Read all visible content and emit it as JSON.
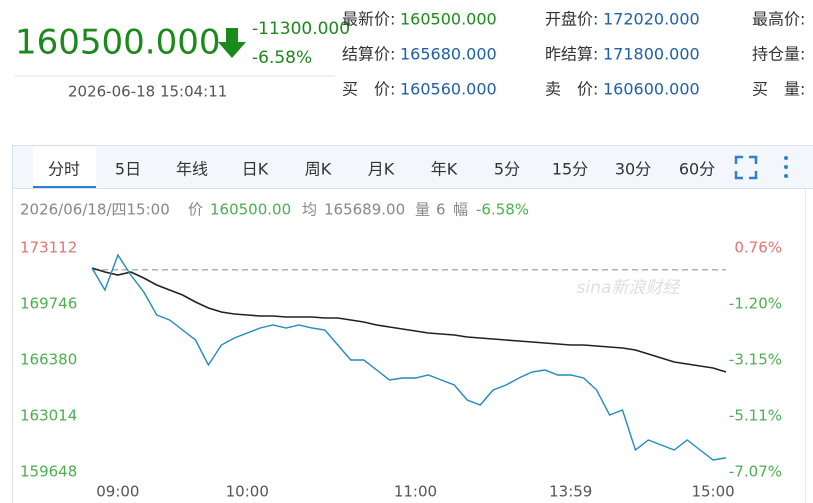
{
  "header": {
    "price": "160500.000",
    "change": "-11300.000",
    "change_pct": "-6.58%",
    "datetime": "2026-06-18 15:04:11"
  },
  "quotes": [
    {
      "label": "最新价:",
      "value": "160500.000"
    },
    {
      "label": "结算价:",
      "value": "165680.000"
    },
    {
      "label": "买　价:",
      "value": "160560.000"
    },
    {
      "label": "开盘价:",
      "value": "172020.000"
    },
    {
      "label": "昨结算:",
      "value": "171800.000"
    },
    {
      "label": "卖　价:",
      "value": "160600.000"
    },
    {
      "label": "最高价:"
    },
    {
      "label": "持仓量:"
    },
    {
      "label": "买　量:"
    }
  ],
  "tabs": [
    "分时",
    "5日",
    "年线",
    "日K",
    "周K",
    "月K",
    "年K",
    "5分",
    "15分",
    "30分",
    "60分"
  ],
  "info": {
    "date": "2026/06/18/四15:00",
    "price_label": "价",
    "price": "160500.00",
    "avg_label": "均",
    "avg": "165689.00",
    "vol_label": "量",
    "vol": "6",
    "range_label": "幅",
    "range": "-6.58%"
  },
  "chart_data": {
    "type": "line",
    "watermark": "sina新浪财经",
    "categories": [
      null,
      null,
      "09:00",
      null,
      null,
      null,
      null,
      null,
      null,
      null,
      null,
      null,
      "10:00",
      null,
      null,
      null,
      null,
      null,
      null,
      null,
      null,
      null,
      null,
      null,
      null,
      "11:00",
      null,
      null,
      null,
      null,
      null,
      null,
      null,
      null,
      null,
      null,
      null,
      "13:59",
      null,
      null,
      null,
      null,
      null,
      null,
      null,
      null,
      null,
      null,
      "15:00",
      null
    ],
    "series": [
      {
        "color": "#1e8bc3",
        "values": [
          171910,
          170588,
          172691,
          171489,
          170468,
          169085,
          168785,
          168184,
          167583,
          166080,
          167282,
          167703,
          168003,
          168304,
          168484,
          168304,
          168484,
          168304,
          168184,
          167282,
          166381,
          166381,
          165780,
          165179,
          165299,
          165299,
          165479,
          165179,
          164878,
          163977,
          163677,
          164578,
          164878,
          165299,
          165660,
          165780,
          165479,
          165479,
          165299,
          164578,
          163075,
          163376,
          160972,
          161573,
          161272,
          160972,
          161573,
          160972,
          160371,
          160500
        ]
      },
      {
        "color": "#222222",
        "values": [
          171910,
          171670,
          171489,
          171670,
          171309,
          170888,
          170588,
          170287,
          169867,
          169506,
          169266,
          169145,
          169085,
          169025,
          169025,
          168965,
          168965,
          168965,
          168905,
          168905,
          168785,
          168665,
          168484,
          168364,
          168244,
          168124,
          168003,
          167943,
          167883,
          167763,
          167703,
          167643,
          167583,
          167523,
          167463,
          167403,
          167342,
          167282,
          167282,
          167222,
          167162,
          167102,
          166982,
          166741,
          166501,
          166261,
          166140,
          166020,
          165900,
          165660
        ]
      }
    ],
    "reference": 171800,
    "up_color": "#e57373",
    "down_color": "#4caf50",
    "ylim": [
      159648,
      173112
    ],
    "yticks": [
      159648,
      163014,
      166380,
      169746,
      173112
    ],
    "y2lim": [
      -7.07,
      0.76
    ],
    "y2ticks": [
      {
        "value": -7.07,
        "label": "-7.07%"
      },
      {
        "value": -5.11,
        "label": "-5.11%"
      },
      {
        "value": -3.15,
        "label": "-3.15%"
      },
      {
        "value": -1.2,
        "label": "-1.20%"
      },
      {
        "value": 0.76,
        "label": "0.76%"
      }
    ]
  }
}
